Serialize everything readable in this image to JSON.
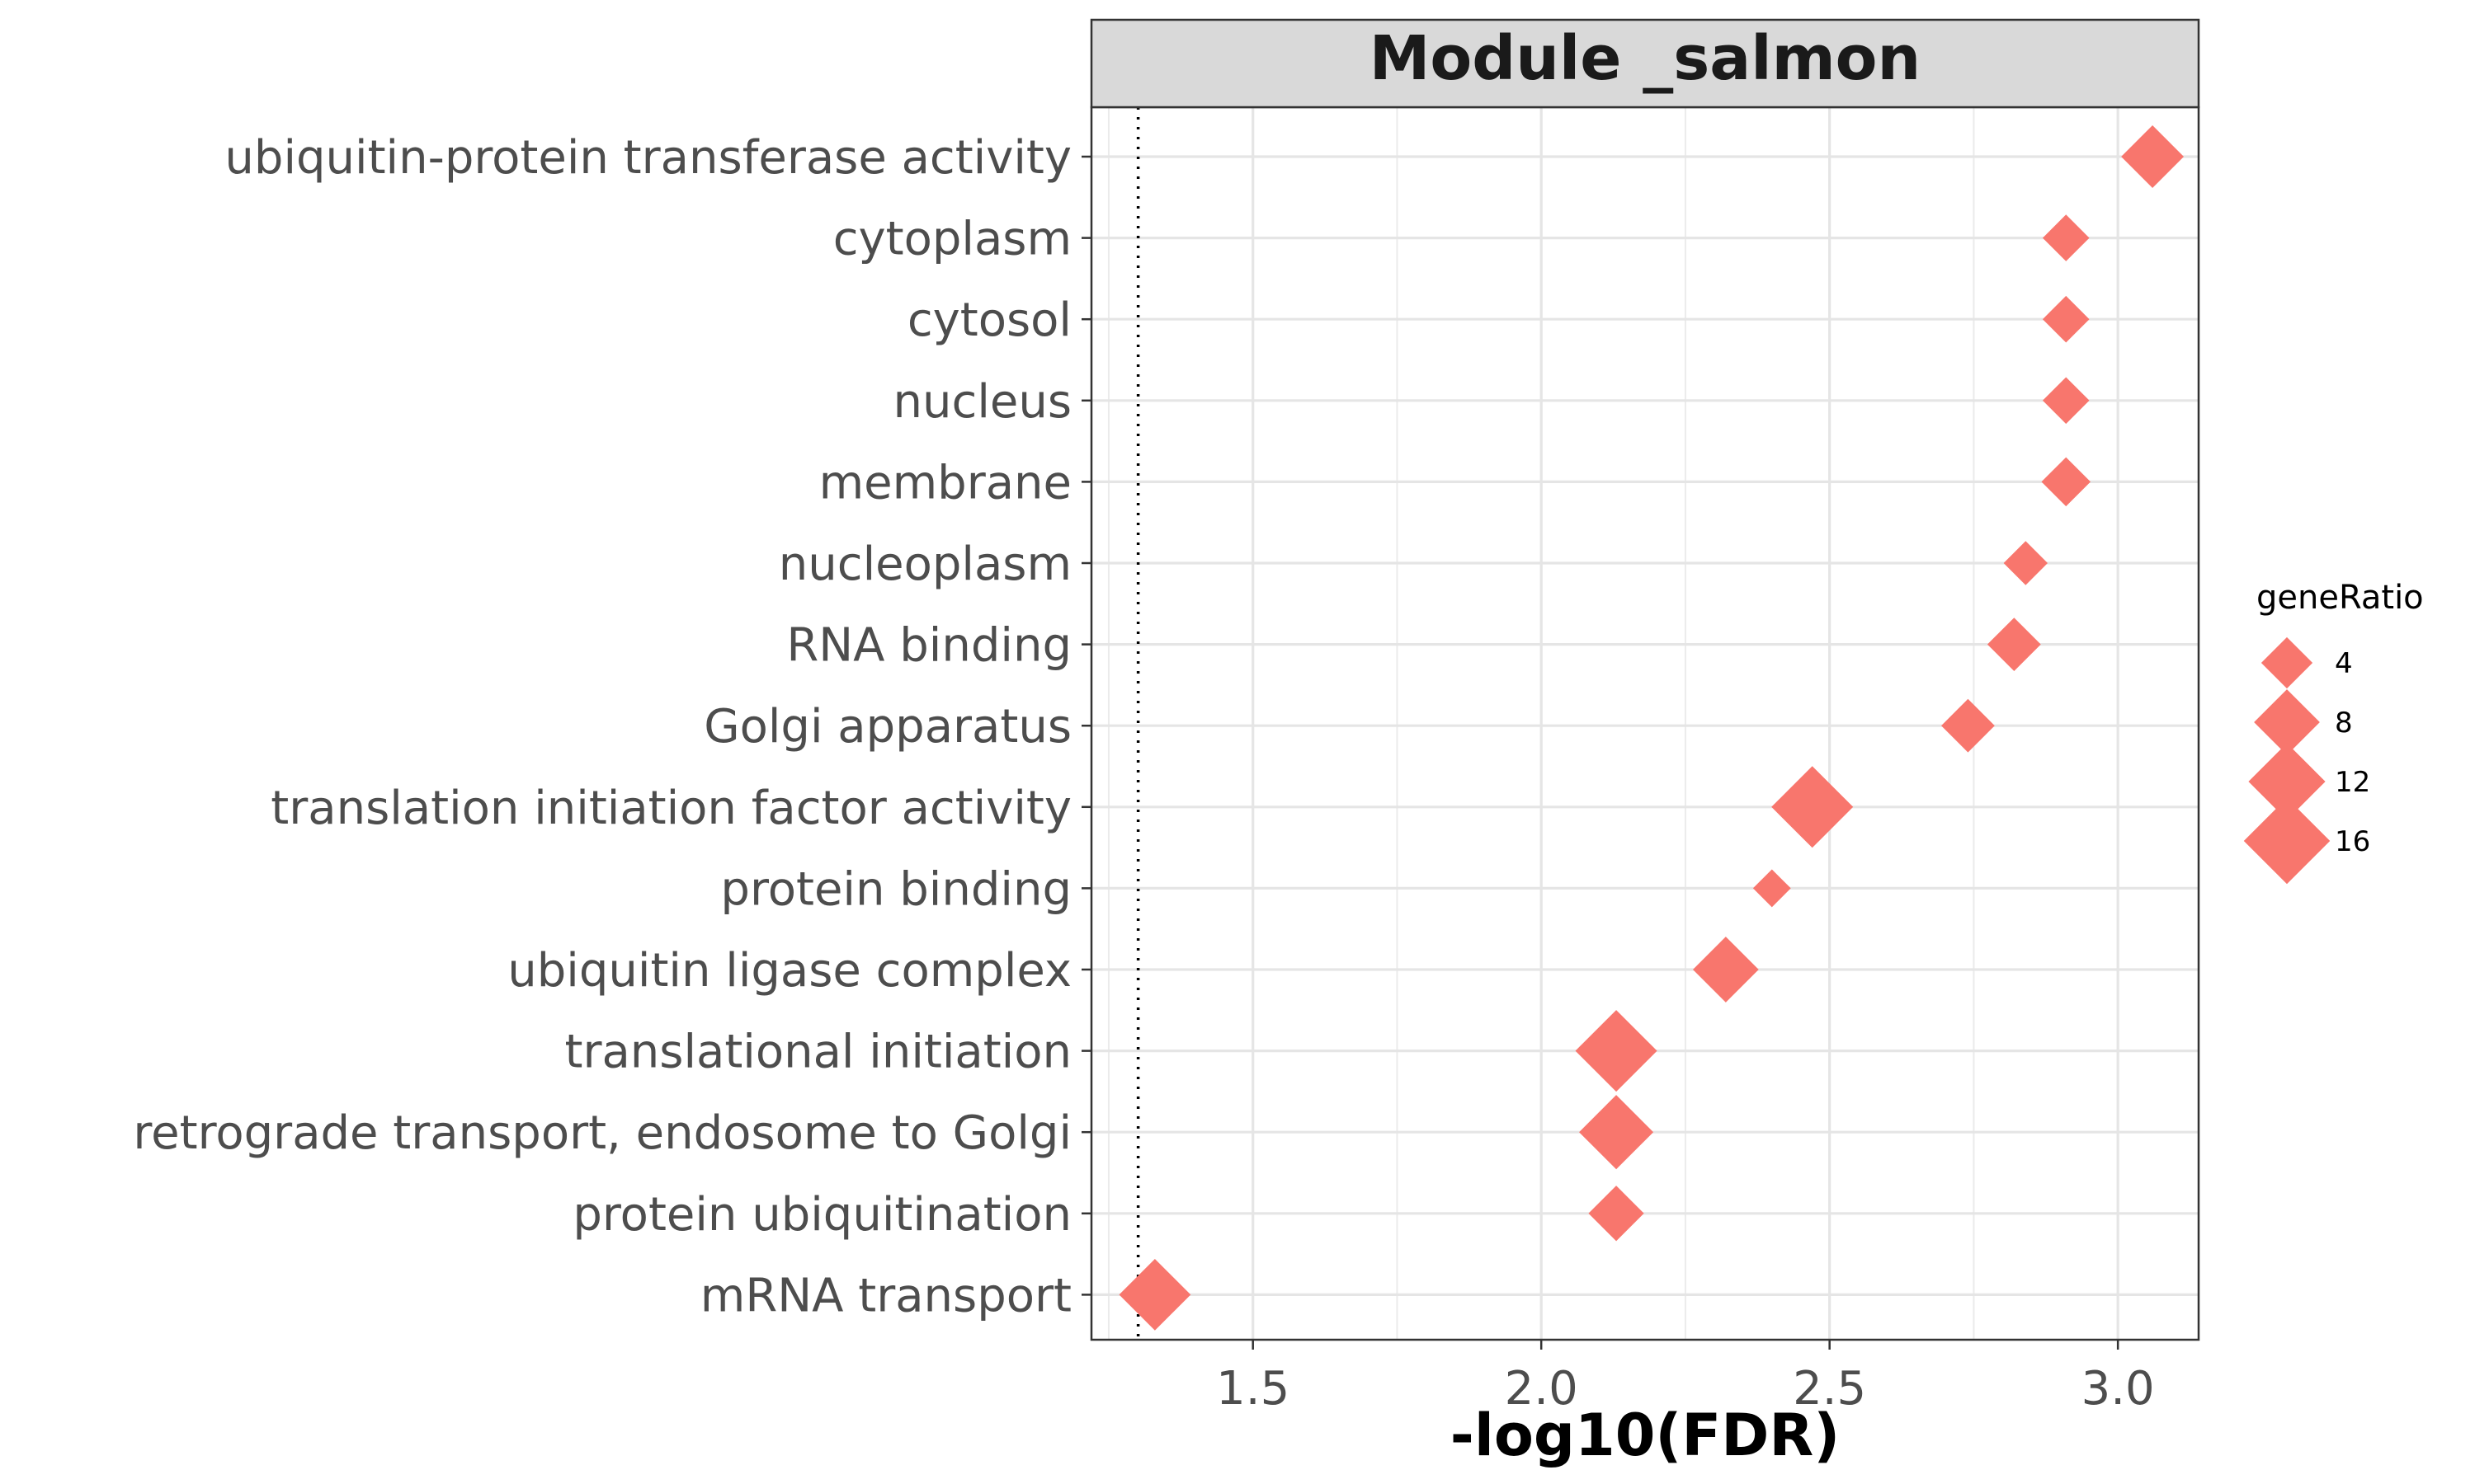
{
  "chart_data": {
    "type": "scatter",
    "title": "Module _salmon",
    "xlabel": "-log10(FDR)",
    "ylabel": "",
    "xlim": [
      1.22,
      3.14
    ],
    "xticks": [
      1.5,
      2.0,
      2.5,
      3.0
    ],
    "xtick_labels": [
      "1.5",
      "2.0",
      "2.5",
      "3.0"
    ],
    "grid": true,
    "reference_line": {
      "x": 1.301,
      "style": "dotted"
    },
    "marker": "diamond",
    "color": "#F8766D",
    "categories": [
      "ubiquitin-protein transferase activity",
      "cytoplasm",
      "cytosol",
      "nucleus",
      "membrane",
      "nucleoplasm",
      "RNA binding",
      "Golgi apparatus",
      "translation initiation factor activity",
      "protein binding",
      "ubiquitin ligase complex",
      "translational initiation",
      "retrograde transport, endosome to Golgi",
      "protein ubiquitination",
      "mRNA transport"
    ],
    "points": [
      {
        "term": "ubiquitin-protein transferase activity",
        "x": 3.06,
        "geneRatio": 7
      },
      {
        "term": "cytoplasm",
        "x": 2.91,
        "geneRatio": 3
      },
      {
        "term": "cytosol",
        "x": 2.91,
        "geneRatio": 3
      },
      {
        "term": "nucleus",
        "x": 2.91,
        "geneRatio": 3
      },
      {
        "term": "membrane",
        "x": 2.91,
        "geneRatio": 3.5
      },
      {
        "term": "nucleoplasm",
        "x": 2.84,
        "geneRatio": 2.5
      },
      {
        "term": "RNA binding",
        "x": 2.82,
        "geneRatio": 4.5
      },
      {
        "term": "Golgi apparatus",
        "x": 2.74,
        "geneRatio": 4.5
      },
      {
        "term": "translation initiation factor activity",
        "x": 2.47,
        "geneRatio": 14
      },
      {
        "term": "protein binding",
        "x": 2.4,
        "geneRatio": 1.5
      },
      {
        "term": "ubiquitin ligase complex",
        "x": 2.32,
        "geneRatio": 8
      },
      {
        "term": "translational initiation",
        "x": 2.13,
        "geneRatio": 14
      },
      {
        "term": "retrograde transport, endosome to Golgi",
        "x": 2.13,
        "geneRatio": 11
      },
      {
        "term": "protein ubiquitination",
        "x": 2.13,
        "geneRatio": 5
      },
      {
        "term": "mRNA transport",
        "x": 1.33,
        "geneRatio": 10
      }
    ],
    "legend": {
      "title": "geneRatio",
      "position": "right",
      "entries": [
        {
          "label": "4",
          "value": 4
        },
        {
          "label": "8",
          "value": 8
        },
        {
          "label": "12",
          "value": 12
        },
        {
          "label": "16",
          "value": 16
        }
      ]
    }
  }
}
